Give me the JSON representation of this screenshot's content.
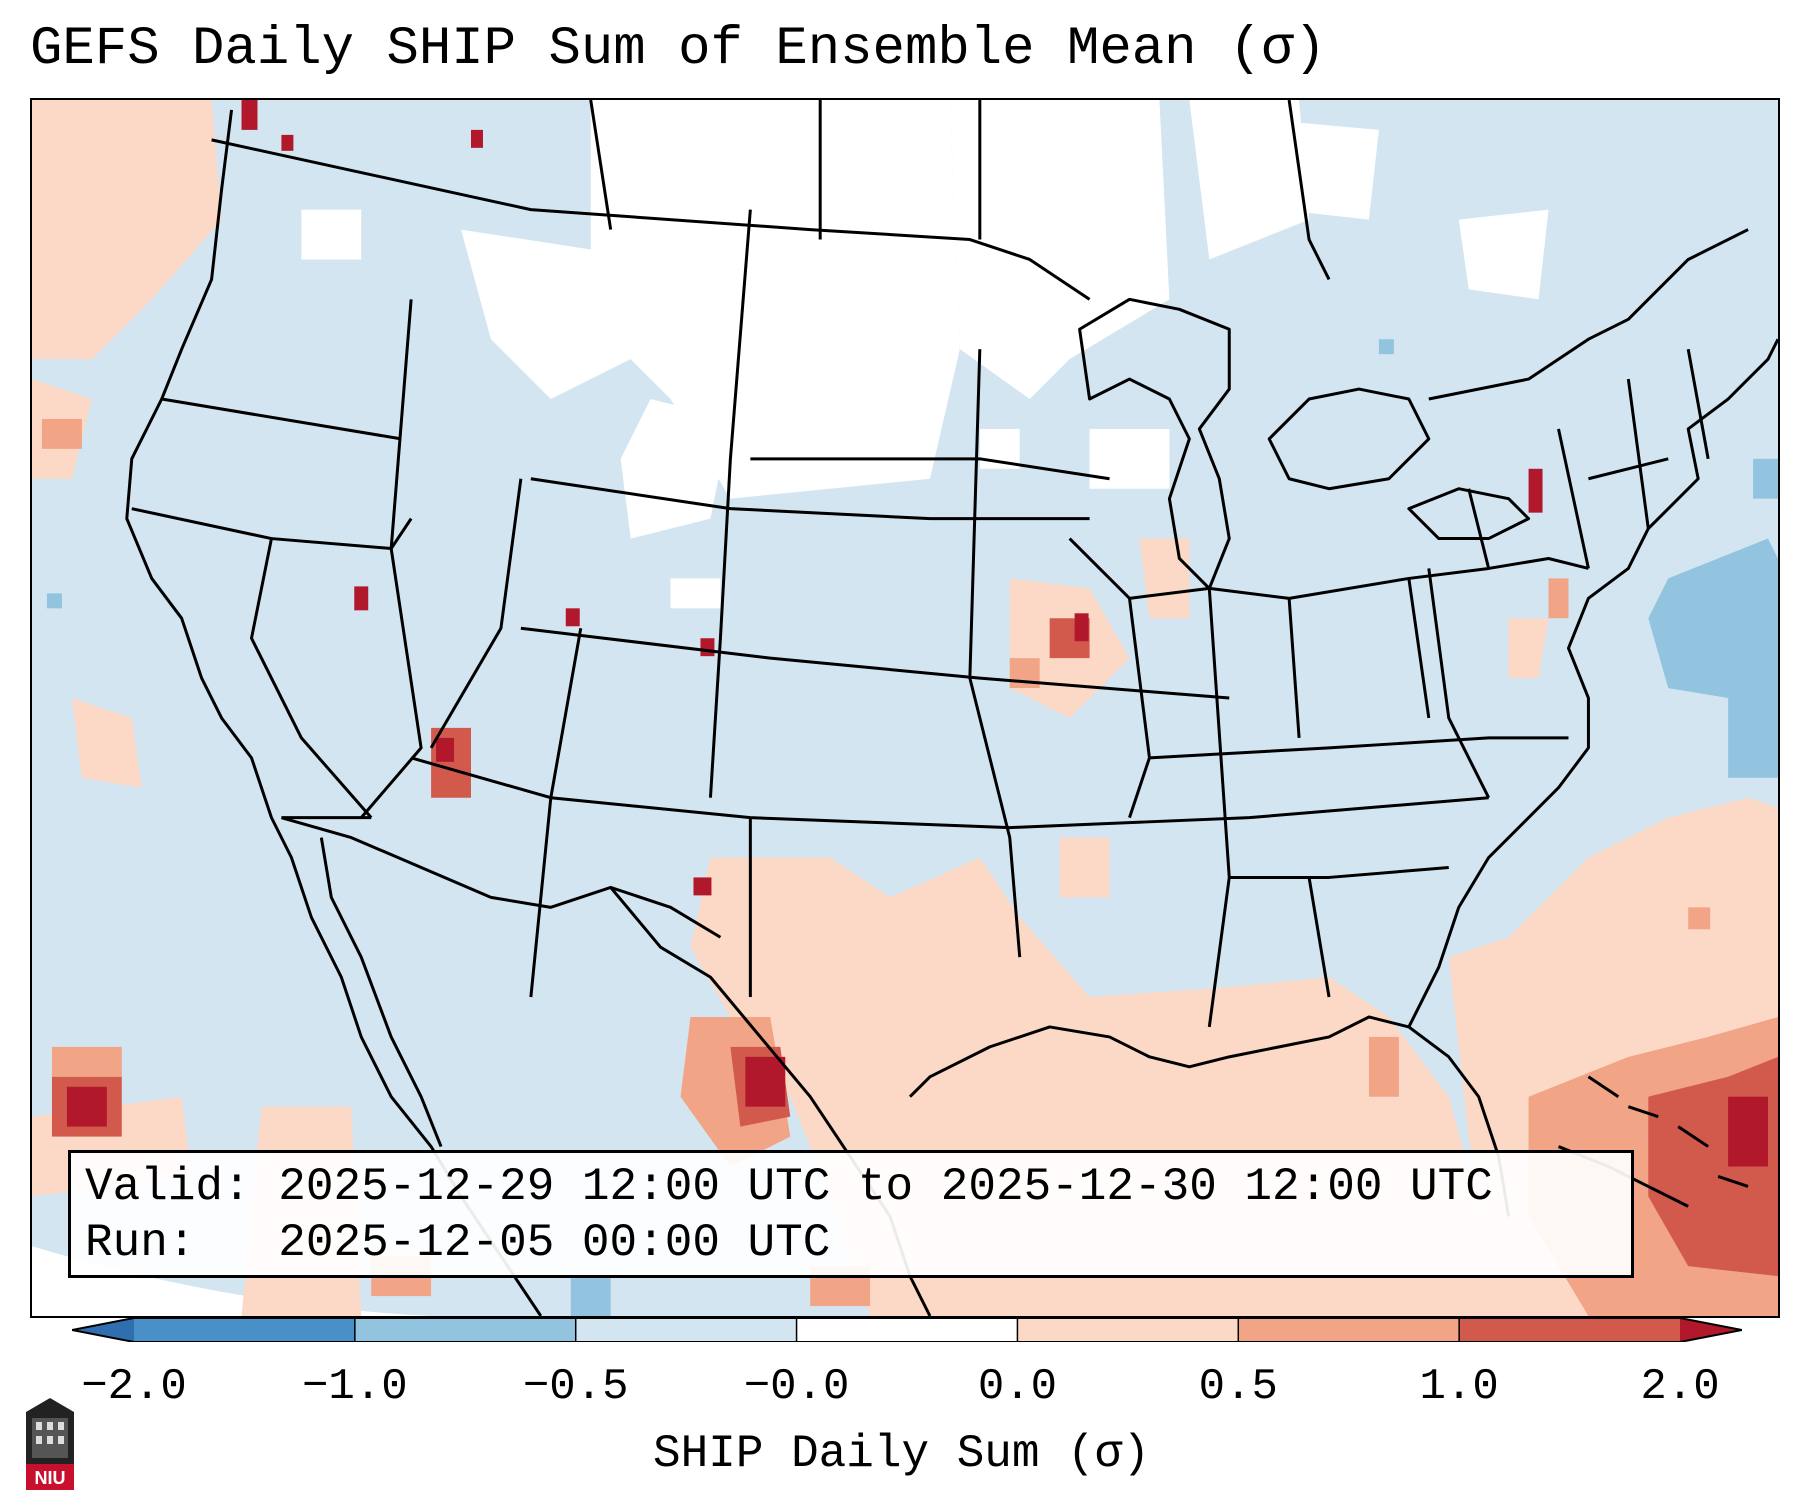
{
  "title": "GEFS Daily SHIP Sum of Ensemble Mean (σ)",
  "info": {
    "valid_label": "Valid:",
    "valid_value": "2025-12-29 12:00 UTC to 2025-12-30 12:00 UTC",
    "run_label": "Run:",
    "run_value": "2025-12-05 00:00 UTC"
  },
  "colorbar": {
    "label": "SHIP Daily Sum (σ)",
    "ticks": [
      "−2.0",
      "−1.0",
      "−0.5",
      "−0.0",
      "0.0",
      "0.5",
      "1.0",
      "2.0"
    ],
    "bins": [
      {
        "range": "< -2.0",
        "color": "#2f6fb0"
      },
      {
        "range": "-2.0 to -1.0",
        "color": "#4a90c8"
      },
      {
        "range": "-1.0 to -0.5",
        "color": "#92c4df"
      },
      {
        "range": "-0.5 to -0.0",
        "color": "#d2e5f0"
      },
      {
        "range": "-0.0 to 0.0",
        "color": "#ffffff"
      },
      {
        "range": "0.0 to 0.5",
        "color": "#fcd9c6"
      },
      {
        "range": "0.5 to 1.0",
        "color": "#f2a486"
      },
      {
        "range": "1.0 to 2.0",
        "color": "#d25a4c"
      },
      {
        "range": "> 2.0",
        "color": "#b2182b"
      }
    ]
  },
  "logo": {
    "text": "NIU"
  }
}
